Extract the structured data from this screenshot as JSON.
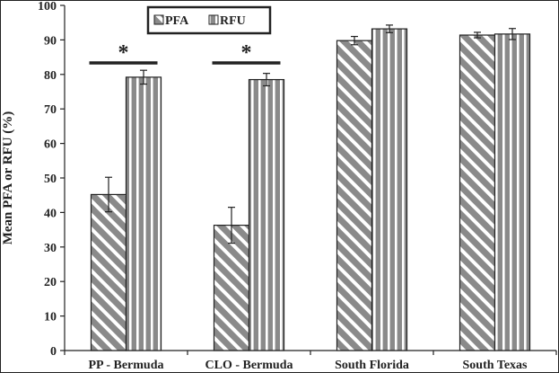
{
  "chart_data": {
    "type": "bar",
    "title": "",
    "xlabel": "",
    "ylabel": "Mean PFA or RFU (%)",
    "ylim": [
      0,
      100
    ],
    "yticks": [
      0,
      10,
      20,
      30,
      40,
      50,
      60,
      70,
      80,
      90,
      100
    ],
    "categories": [
      "PP - Bermuda",
      "CLO - Bermuda",
      "South Florida",
      "South Texas"
    ],
    "series": [
      {
        "name": "PFA",
        "values": [
          45.2,
          36.3,
          89.8,
          91.4
        ],
        "errors": [
          5.0,
          5.2,
          1.2,
          0.8
        ]
      },
      {
        "name": "RFU",
        "values": [
          79.2,
          78.5,
          93.2,
          91.7
        ],
        "errors": [
          2.0,
          1.8,
          1.1,
          1.6
        ]
      }
    ],
    "legend": {
      "position": "top-left",
      "entries": [
        "PFA",
        "RFU"
      ]
    },
    "annotations": [
      {
        "text": "*",
        "category": "PP - Bermuda",
        "note": "significance bar"
      },
      {
        "text": "*",
        "category": "CLO - Bermuda",
        "note": "significance bar"
      }
    ],
    "colors": {
      "bar_fill": "#8a8a8a",
      "pattern": "#ffffff",
      "axis": "#222222",
      "frame": "#222222"
    },
    "grid": false
  }
}
